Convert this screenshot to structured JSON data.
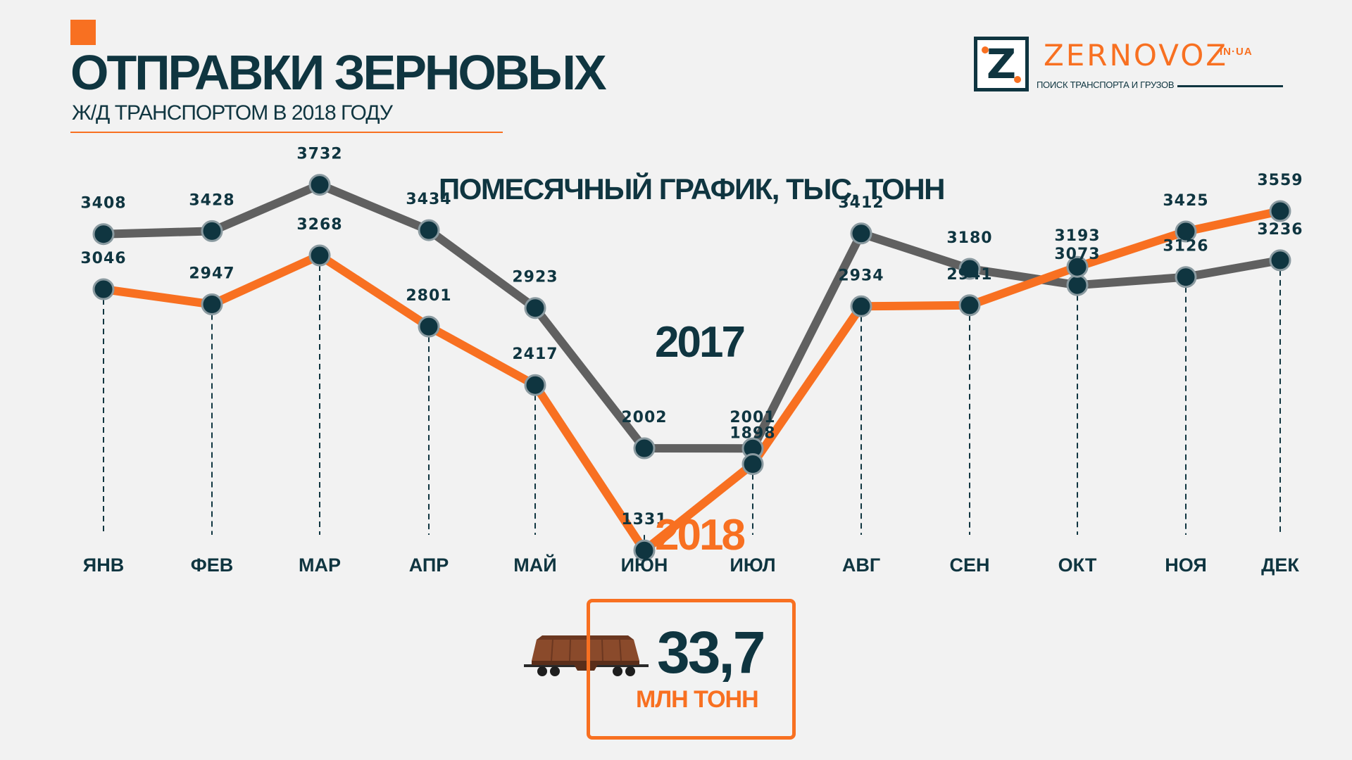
{
  "header": {
    "title": "ОТПРАВКИ ЗЕРНОВЫХ",
    "subtitle": "Ж/Д ТРАНСПОРТОМ В 2018 ГОДУ"
  },
  "logo": {
    "letter": "Z",
    "name": "ZERNOVOZ",
    "domain": "IN·UA",
    "tagline": "ПОИСК ТРАНСПОРТА И ГРУЗОВ"
  },
  "colors": {
    "accent": "#f87021",
    "dark": "#0f3540",
    "series_2017": "#606060",
    "series_2018": "#f87021",
    "background": "#f2f2f2"
  },
  "chart_data": {
    "type": "line",
    "title": "ПОМЕСЯЧНЫЙ ГРАФИК, ТЫС. ТОНН",
    "categories": [
      "ЯНВ",
      "ФЕВ",
      "МАР",
      "АПР",
      "МАЙ",
      "ИЮН",
      "ИЮЛ",
      "АВГ",
      "СЕН",
      "ОКТ",
      "НОЯ",
      "ДЕК"
    ],
    "series": [
      {
        "name": "2017",
        "values": [
          3408,
          3428,
          3732,
          3434,
          2923,
          2002,
          2001,
          3412,
          3180,
          3073,
          3126,
          3236
        ]
      },
      {
        "name": "2018",
        "values": [
          3046,
          2947,
          3268,
          2801,
          2417,
          1331,
          1898,
          2934,
          2941,
          3193,
          3425,
          3559
        ]
      }
    ],
    "xlabel": "",
    "ylabel": "",
    "grid": false,
    "legend": "inline labels",
    "data_labels": true
  },
  "total": {
    "value": "33,7",
    "unit": "МЛН ТОНН",
    "icon": "hopper-wagon-icon"
  }
}
